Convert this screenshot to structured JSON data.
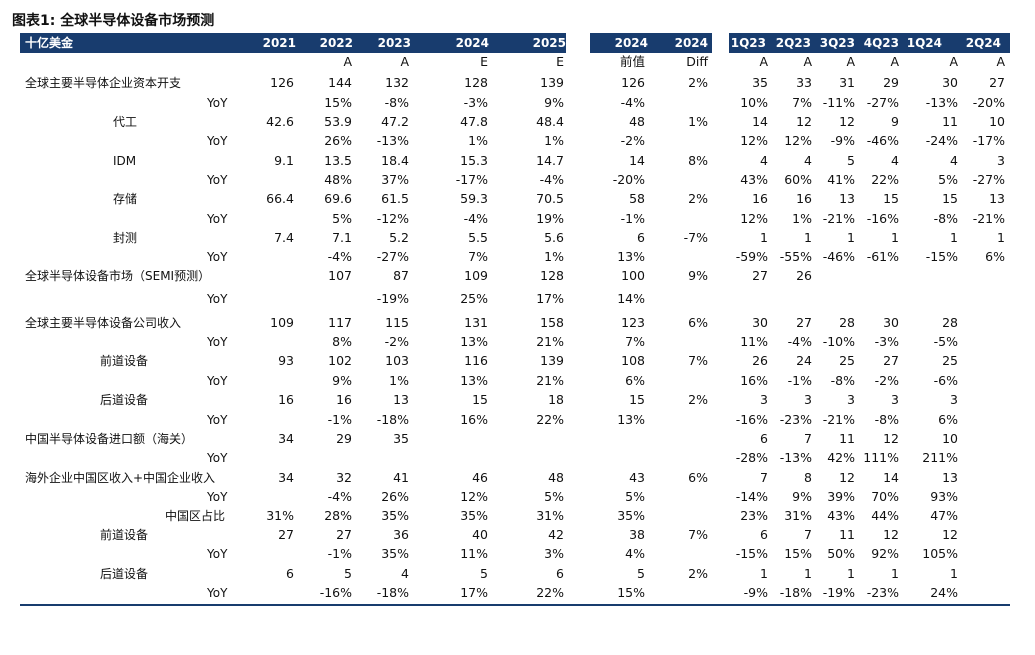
{
  "title": "图表1:  全球半导体设备市场预测",
  "header": {
    "cols": [
      "十亿美金",
      "2021",
      "2022",
      "2023",
      "2024",
      "2025",
      "2024",
      "2024",
      "1Q23",
      "2Q23",
      "3Q23",
      "4Q23",
      "1Q24",
      "2Q24"
    ]
  },
  "rows": [
    {
      "cells": [
        "",
        "",
        "A",
        "A",
        "E",
        "E",
        "前值",
        "Diff",
        "A",
        "A",
        "A",
        "A",
        "A",
        "A"
      ]
    },
    {
      "cells": [
        "全球主要半导体企业资本开支",
        "126",
        "144",
        "132",
        "128",
        "139",
        "126",
        "2%",
        "35",
        "33",
        "31",
        "29",
        "30",
        "27"
      ]
    },
    {
      "cells": [
        "YoY",
        "",
        "15%",
        "-8%",
        "-3%",
        "9%",
        "-4%",
        "",
        "10%",
        "7%",
        "-11%",
        "-27%",
        "-13%",
        "-20%"
      ]
    },
    {
      "cells": [
        "代工",
        "42.6",
        "53.9",
        "47.2",
        "47.8",
        "48.4",
        "48",
        "1%",
        "14",
        "12",
        "12",
        "9",
        "11",
        "10"
      ]
    },
    {
      "cells": [
        "YoY",
        "",
        "26%",
        "-13%",
        "1%",
        "1%",
        "-2%",
        "",
        "12%",
        "12%",
        "-9%",
        "-46%",
        "-24%",
        "-17%"
      ]
    },
    {
      "cells": [
        "IDM",
        "9.1",
        "13.5",
        "18.4",
        "15.3",
        "14.7",
        "14",
        "8%",
        "4",
        "4",
        "5",
        "4",
        "4",
        "3"
      ]
    },
    {
      "cells": [
        "YoY",
        "",
        "48%",
        "37%",
        "-17%",
        "-4%",
        "-20%",
        "",
        "43%",
        "60%",
        "41%",
        "22%",
        "5%",
        "-27%"
      ]
    },
    {
      "cells": [
        "存储",
        "66.4",
        "69.6",
        "61.5",
        "59.3",
        "70.5",
        "58",
        "2%",
        "16",
        "16",
        "13",
        "15",
        "15",
        "13"
      ]
    },
    {
      "cells": [
        "YoY",
        "",
        "5%",
        "-12%",
        "-4%",
        "19%",
        "-1%",
        "",
        "12%",
        "1%",
        "-21%",
        "-16%",
        "-8%",
        "-21%"
      ]
    },
    {
      "cells": [
        "封测",
        "7.4",
        "7.1",
        "5.2",
        "5.5",
        "5.6",
        "6",
        "-7%",
        "1",
        "1",
        "1",
        "1",
        "1",
        "1"
      ]
    },
    {
      "cells": [
        "YoY",
        "",
        "-4%",
        "-27%",
        "7%",
        "1%",
        "13%",
        "",
        "-59%",
        "-55%",
        "-46%",
        "-61%",
        "-15%",
        "6%"
      ]
    },
    {
      "cells": [
        "全球半导体设备市场（SEMI预测）",
        "",
        "107",
        "87",
        "109",
        "128",
        "100",
        "9%",
        "27",
        "26",
        "",
        "",
        "",
        ""
      ]
    },
    {
      "cells": [
        "YoY",
        "",
        "",
        "-19%",
        "25%",
        "17%",
        "14%",
        "",
        "",
        "",
        "",
        "",
        "",
        ""
      ]
    },
    {
      "cells": [
        "全球主要半导体设备公司收入",
        "109",
        "117",
        "115",
        "131",
        "158",
        "123",
        "6%",
        "30",
        "27",
        "28",
        "30",
        "28",
        ""
      ]
    },
    {
      "cells": [
        "YoY",
        "",
        "8%",
        "-2%",
        "13%",
        "21%",
        "7%",
        "",
        "11%",
        "-4%",
        "-10%",
        "-3%",
        "-5%",
        ""
      ]
    },
    {
      "cells": [
        "前道设备",
        "93",
        "102",
        "103",
        "116",
        "139",
        "108",
        "7%",
        "26",
        "24",
        "25",
        "27",
        "25",
        ""
      ]
    },
    {
      "cells": [
        "YoY",
        "",
        "9%",
        "1%",
        "13%",
        "21%",
        "6%",
        "",
        "16%",
        "-1%",
        "-8%",
        "-2%",
        "-6%",
        ""
      ]
    },
    {
      "cells": [
        "后道设备",
        "16",
        "16",
        "13",
        "15",
        "18",
        "15",
        "2%",
        "3",
        "3",
        "3",
        "3",
        "3",
        ""
      ]
    },
    {
      "cells": [
        "YoY",
        "",
        "-1%",
        "-18%",
        "16%",
        "22%",
        "13%",
        "",
        "-16%",
        "-23%",
        "-21%",
        "-8%",
        "6%",
        ""
      ]
    },
    {
      "cells": [
        "中国半导体设备进口额（海关）",
        "34",
        "29",
        "35",
        "",
        "",
        "",
        "",
        "6",
        "7",
        "11",
        "12",
        "10",
        ""
      ]
    },
    {
      "cells": [
        "YoY",
        "",
        "",
        "",
        "",
        "",
        "",
        "",
        "-28%",
        "-13%",
        "42%",
        "111%",
        "211%",
        ""
      ]
    },
    {
      "cells": [
        "海外企业中国区收入+中国企业收入",
        "34",
        "32",
        "41",
        "46",
        "48",
        "43",
        "6%",
        "7",
        "8",
        "12",
        "14",
        "13",
        ""
      ]
    },
    {
      "cells": [
        "YoY",
        "",
        "-4%",
        "26%",
        "12%",
        "5%",
        "5%",
        "",
        "-14%",
        "9%",
        "39%",
        "70%",
        "93%",
        ""
      ]
    },
    {
      "cells": [
        "中国区占比",
        "31%",
        "28%",
        "35%",
        "35%",
        "31%",
        "35%",
        "",
        "23%",
        "31%",
        "43%",
        "44%",
        "47%",
        ""
      ]
    },
    {
      "cells": [
        "前道设备",
        "27",
        "27",
        "36",
        "40",
        "42",
        "38",
        "7%",
        "6",
        "7",
        "11",
        "12",
        "12",
        ""
      ]
    },
    {
      "cells": [
        "YoY",
        "",
        "-1%",
        "35%",
        "11%",
        "3%",
        "4%",
        "",
        "-15%",
        "15%",
        "50%",
        "92%",
        "105%",
        ""
      ]
    },
    {
      "cells": [
        "后道设备",
        "6",
        "5",
        "4",
        "5",
        "6",
        "5",
        "2%",
        "1",
        "1",
        "1",
        "1",
        "1",
        ""
      ]
    },
    {
      "cells": [
        "YoY",
        "",
        "-16%",
        "-18%",
        "17%",
        "22%",
        "15%",
        "",
        "-9%",
        "-18%",
        "-19%",
        "-23%",
        "24%",
        ""
      ]
    }
  ]
}
